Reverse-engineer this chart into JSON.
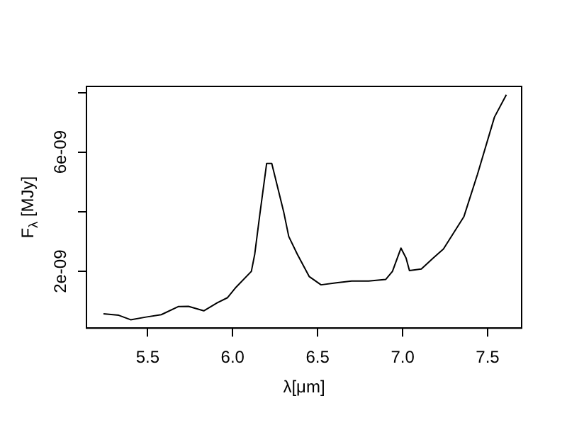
{
  "chart_data": {
    "type": "line",
    "xlabel": "λ[μm]",
    "ylabel": "F$_{λ}$ [MJy]",
    "x": [
      5.24,
      5.33,
      5.4,
      5.49,
      5.58,
      5.68,
      5.74,
      5.83,
      5.91,
      5.97,
      6.02,
      6.11,
      6.13,
      6.16,
      6.2,
      6.23,
      6.3,
      6.33,
      6.38,
      6.45,
      6.52,
      6.61,
      6.7,
      6.8,
      6.9,
      6.94,
      6.99,
      7.02,
      7.04,
      7.11,
      7.18,
      7.24,
      7.36,
      7.44,
      7.54,
      7.61
    ],
    "series": [
      {
        "color": "#000000",
        "values": [
          5.8e-10,
          5.3e-10,
          3.8e-10,
          4.7e-10,
          5.5e-10,
          8.2e-10,
          8.3e-10,
          6.8e-10,
          9.5e-10,
          1.12e-09,
          1.47e-09,
          2e-09,
          2.58e-09,
          3.92e-09,
          5.62e-09,
          5.62e-09,
          4e-09,
          3.17e-09,
          2.58e-09,
          1.83e-09,
          1.55e-09,
          1.62e-09,
          1.68e-09,
          1.68e-09,
          1.73e-09,
          2e-09,
          2.78e-09,
          2.45e-09,
          2.03e-09,
          2.08e-09,
          2.45e-09,
          2.75e-09,
          3.83e-09,
          5.25e-09,
          7.17e-09,
          7.92e-09
        ]
      }
    ],
    "xlim": [
      5.14,
      7.7
    ],
    "xticks": [
      {
        "value": 5.5,
        "label": "5.5"
      },
      {
        "value": 6,
        "label": "6.0"
      },
      {
        "value": 6.5,
        "label": "6.5"
      },
      {
        "value": 7,
        "label": "7.0"
      },
      {
        "value": 7.5,
        "label": "7.5"
      }
    ],
    "ylim": [
      1e-10,
      8.2e-09
    ],
    "yticks": [
      {
        "value": 2e-09,
        "label": "2e-09"
      },
      {
        "value": 4e-09,
        "label": null
      },
      {
        "value": 6e-09,
        "label": "6e-09"
      },
      {
        "value": 8e-09,
        "label": null
      }
    ],
    "grid": false,
    "legend": false,
    "marker": "none",
    "line_style": "solid"
  }
}
